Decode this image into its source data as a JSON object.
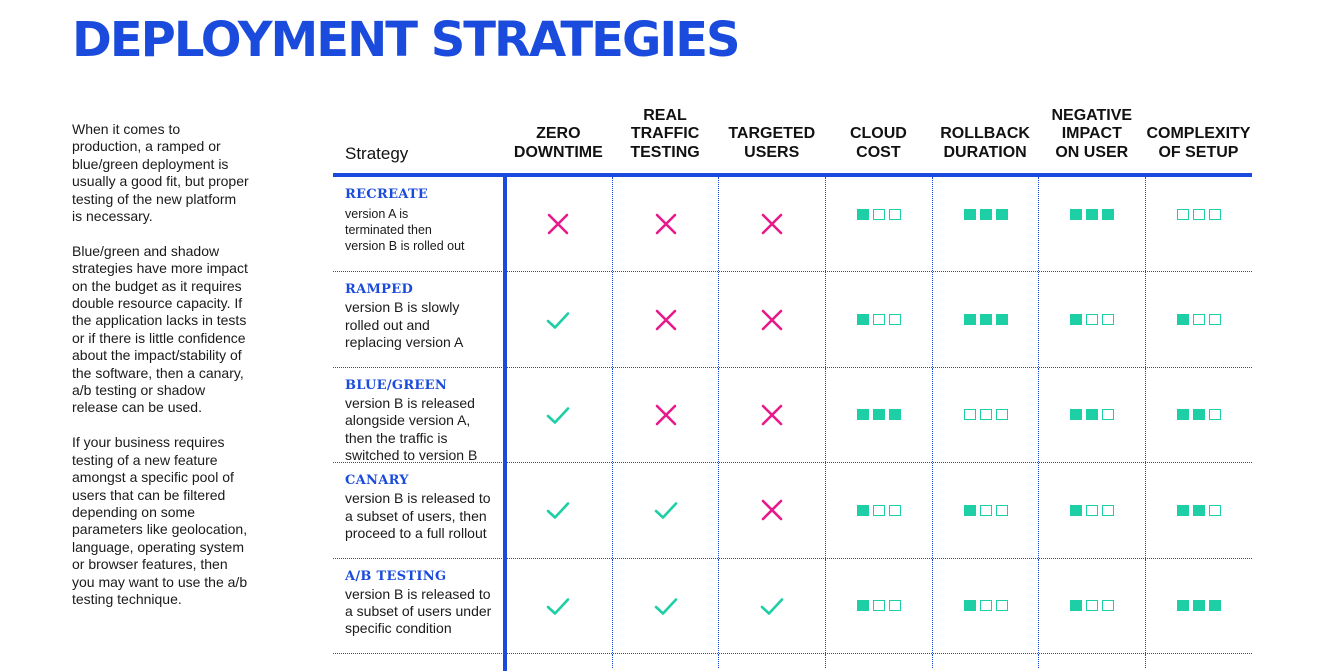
{
  "title": "DEPLOYMENT STRATEGIES",
  "sidebar": {
    "paragraphs": [
      "When it comes to production, a ramped or blue/green deployment is usually a good fit, but proper testing of the new platform is necessary.",
      "Blue/green and shadow strategies have more impact on the budget as it requires double resource capacity. If the application lacks in tests or if there is little confidence about the impact/stability of the software, then a canary, a/b testing or shadow release can be used.",
      "If your business requires testing of a new feature amongst a specific pool of users that can be filtered depending on some parameters like geolocation, language, operating system or browser features, then you may want to use the a/b testing technique."
    ]
  },
  "table": {
    "strategy_header": "Strategy",
    "columns": [
      {
        "lines": [
          "ZERO",
          "DOWNTIME"
        ]
      },
      {
        "lines": [
          "REAL",
          "TRAFFIC",
          "TESTING"
        ]
      },
      {
        "lines": [
          "TARGETED",
          "USERS"
        ]
      },
      {
        "lines": [
          "CLOUD",
          "COST"
        ]
      },
      {
        "lines": [
          "ROLLBACK",
          "DURATION"
        ]
      },
      {
        "lines": [
          "NEGATIVE",
          "IMPACT",
          "ON USER"
        ]
      },
      {
        "lines": [
          "COMPLEXITY",
          "OF SETUP"
        ]
      }
    ],
    "rows": [
      {
        "name": "RECREATE",
        "description": [
          "version A is",
          "terminated then",
          "version B is rolled out"
        ],
        "small": true,
        "checks": [
          "cross",
          "cross",
          "cross"
        ],
        "ratings": [
          1,
          3,
          3,
          0
        ]
      },
      {
        "name": "RAMPED",
        "description": [
          "version B is slowly",
          "rolled out and",
          "replacing version A"
        ],
        "small": false,
        "checks": [
          "check",
          "cross",
          "cross"
        ],
        "ratings": [
          1,
          3,
          1,
          1
        ]
      },
      {
        "name": "BLUE/GREEN",
        "description": [
          "version B is released",
          "alongside version A,",
          "then the traffic is",
          "switched to version B"
        ],
        "small": false,
        "checks": [
          "check",
          "cross",
          "cross"
        ],
        "ratings": [
          3,
          0,
          2,
          2
        ]
      },
      {
        "name": "CANARY",
        "description": [
          "version B is released to",
          "a subset of users, then",
          "proceed to a full rollout"
        ],
        "small": false,
        "checks": [
          "check",
          "check",
          "cross"
        ],
        "ratings": [
          1,
          1,
          1,
          2
        ]
      },
      {
        "name": "A/B TESTING",
        "description": [
          "version B is released to",
          "a subset of users under",
          "specific condition"
        ],
        "small": false,
        "checks": [
          "check",
          "check",
          "check"
        ],
        "ratings": [
          1,
          1,
          1,
          3
        ]
      }
    ]
  },
  "legend_icons": {
    "check": "check-icon",
    "cross": "cross-icon",
    "filled": "filled-square",
    "empty": "empty-square"
  },
  "colors": {
    "brand_blue": "#1a4bdc",
    "check_green": "#1ecfa5",
    "cross_pink": "#e8198b"
  }
}
